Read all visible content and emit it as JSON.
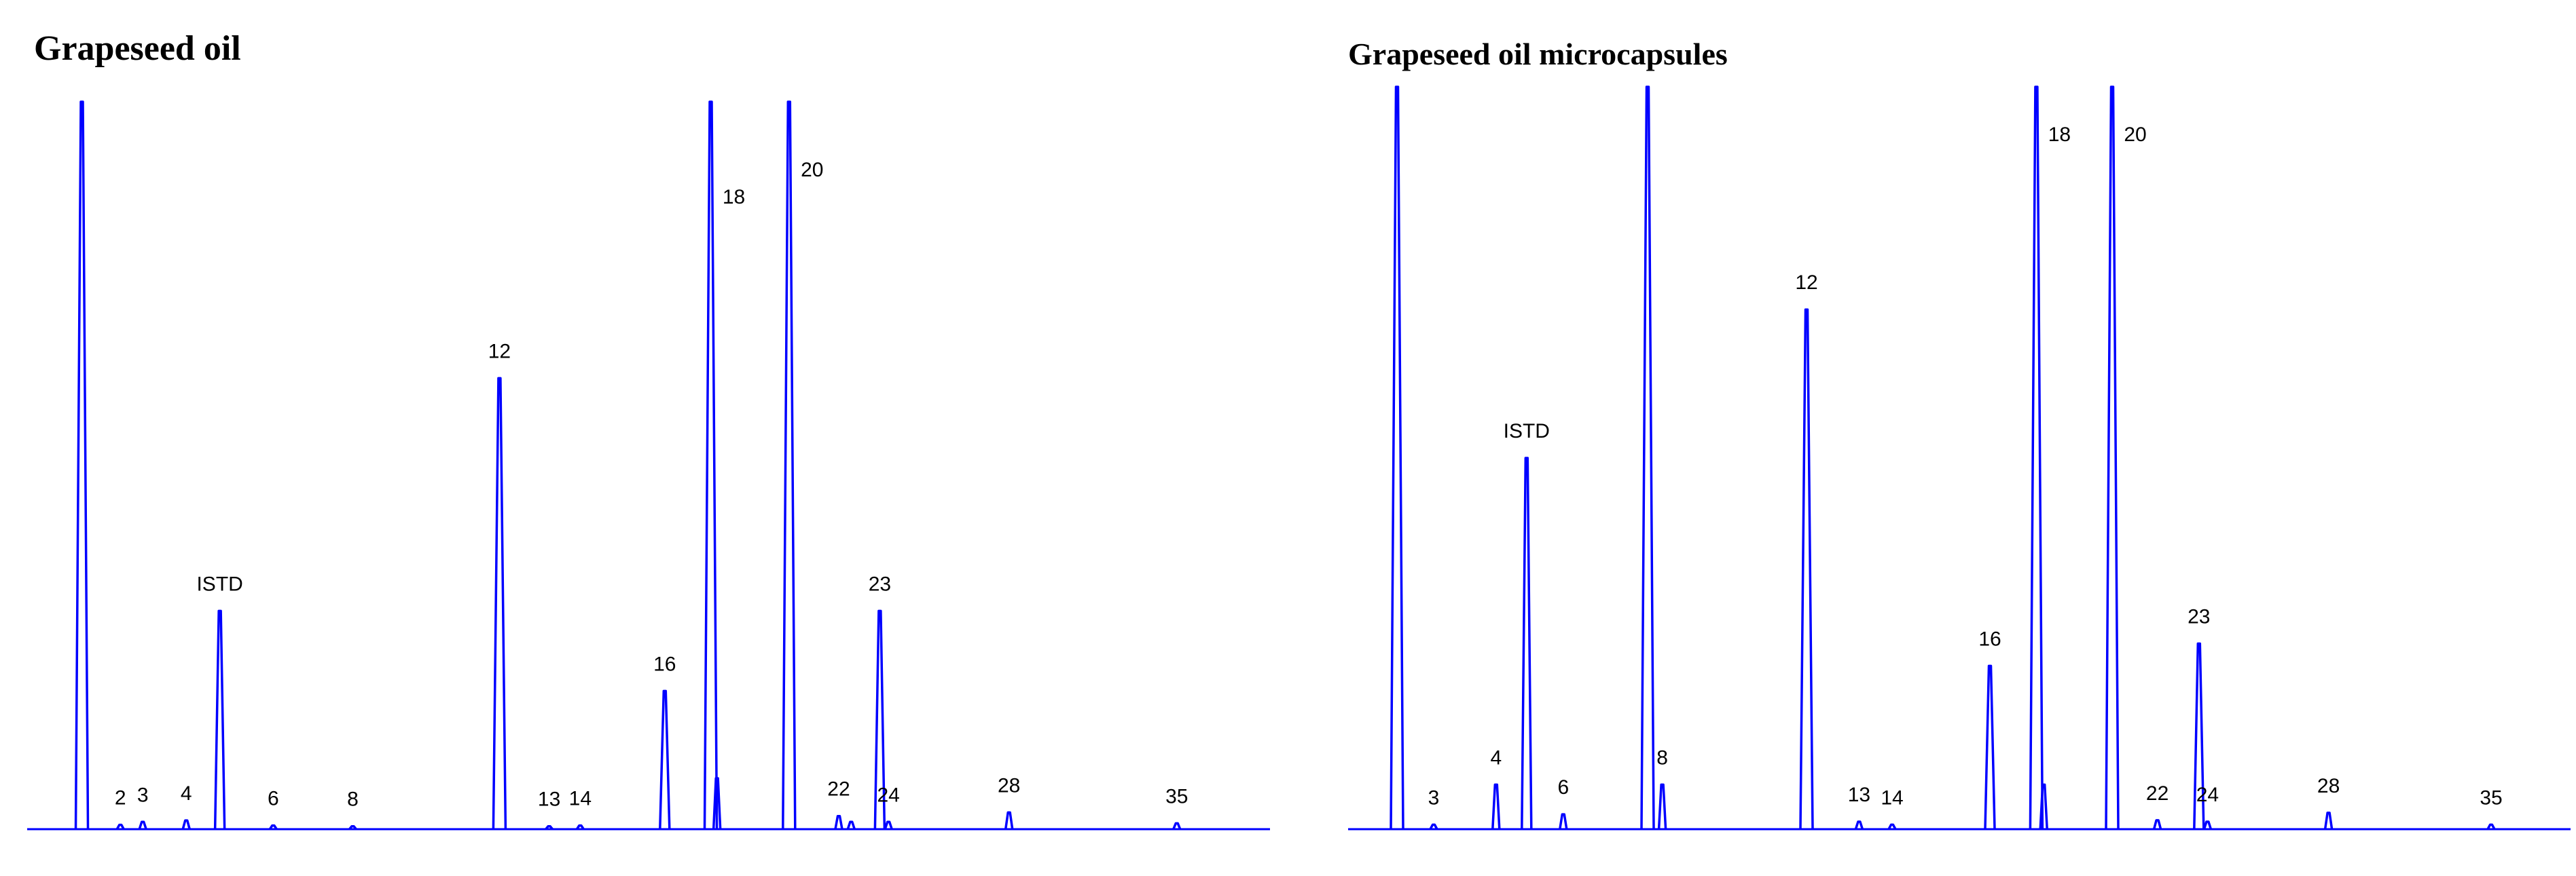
{
  "chart_data": [
    {
      "type": "line",
      "title": "Grapeseed oil",
      "xlabel": "",
      "ylabel": "",
      "axes_visible": false,
      "grid": false,
      "color": "#0000ff",
      "peaks": [
        {
          "label": "",
          "x": 0.044,
          "y": 1.0
        },
        {
          "label": "2",
          "x": 0.075,
          "y": 0.006
        },
        {
          "label": "3",
          "x": 0.093,
          "y": 0.01
        },
        {
          "label": "4",
          "x": 0.128,
          "y": 0.012
        },
        {
          "label": "ISTD",
          "x": 0.155,
          "y": 0.3
        },
        {
          "label": "6",
          "x": 0.198,
          "y": 0.005
        },
        {
          "label": "8",
          "x": 0.262,
          "y": 0.004
        },
        {
          "label": "12",
          "x": 0.38,
          "y": 0.62
        },
        {
          "label": "13",
          "x": 0.42,
          "y": 0.004
        },
        {
          "label": "14",
          "x": 0.445,
          "y": 0.005
        },
        {
          "label": "16",
          "x": 0.513,
          "y": 0.19
        },
        {
          "label": "18",
          "x": 0.55,
          "y": 1.0
        },
        {
          "label": "",
          "x": 0.555,
          "y": 0.07
        },
        {
          "label": "20",
          "x": 0.613,
          "y": 1.0
        },
        {
          "label": "22",
          "x": 0.653,
          "y": 0.018
        },
        {
          "label": "",
          "x": 0.663,
          "y": 0.01
        },
        {
          "label": "23",
          "x": 0.686,
          "y": 0.3
        },
        {
          "label": "24",
          "x": 0.693,
          "y": 0.01
        },
        {
          "label": "28",
          "x": 0.79,
          "y": 0.023
        },
        {
          "label": "35",
          "x": 0.925,
          "y": 0.008
        }
      ]
    },
    {
      "type": "line",
      "title": "Grapeseed oil microcapsules",
      "xlabel": "",
      "ylabel": "",
      "axes_visible": false,
      "grid": false,
      "color": "#0000ff",
      "peaks": [
        {
          "label": "",
          "x": 0.04,
          "y": 1.0
        },
        {
          "label": "3",
          "x": 0.07,
          "y": 0.006
        },
        {
          "label": "4",
          "x": 0.121,
          "y": 0.06
        },
        {
          "label": "ISTD",
          "x": 0.146,
          "y": 0.5
        },
        {
          "label": "6",
          "x": 0.176,
          "y": 0.02
        },
        {
          "label": "",
          "x": 0.245,
          "y": 1.0
        },
        {
          "label": "8",
          "x": 0.257,
          "y": 0.06
        },
        {
          "label": "12",
          "x": 0.375,
          "y": 0.7
        },
        {
          "label": "13",
          "x": 0.418,
          "y": 0.01
        },
        {
          "label": "14",
          "x": 0.445,
          "y": 0.006
        },
        {
          "label": "16",
          "x": 0.525,
          "y": 0.22
        },
        {
          "label": "18",
          "x": 0.563,
          "y": 1.0
        },
        {
          "label": "",
          "x": 0.569,
          "y": 0.06
        },
        {
          "label": "20",
          "x": 0.625,
          "y": 1.0
        },
        {
          "label": "22",
          "x": 0.662,
          "y": 0.012
        },
        {
          "label": "23",
          "x": 0.696,
          "y": 0.25
        },
        {
          "label": "24",
          "x": 0.703,
          "y": 0.01
        },
        {
          "label": "28",
          "x": 0.802,
          "y": 0.022
        },
        {
          "label": "35",
          "x": 0.935,
          "y": 0.006
        }
      ]
    }
  ]
}
